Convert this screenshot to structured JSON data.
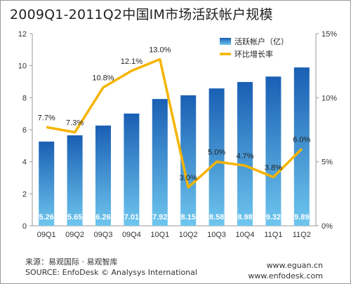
{
  "chart_data": {
    "type": "bar",
    "title": "2009Q1-2011Q2中国IM市场活跃帐户规模",
    "categories": [
      "09Q1",
      "09Q2",
      "09Q3",
      "09Q4",
      "10Q1",
      "10Q2",
      "10Q3",
      "10Q4",
      "11Q1",
      "11Q2"
    ],
    "series": [
      {
        "name": "活跃帐户（亿）",
        "type": "bar",
        "axis": "left",
        "values": [
          5.26,
          5.65,
          6.26,
          7.01,
          7.92,
          8.15,
          8.58,
          8.98,
          9.32,
          9.89
        ],
        "labels": [
          "5.26",
          "5.65",
          "6.26",
          "7.01",
          "7.92",
          "8.15",
          "8.58",
          "8.98",
          "9.32",
          "9.89"
        ]
      },
      {
        "name": "环比增长率",
        "type": "line",
        "axis": "right",
        "values": [
          7.7,
          7.3,
          10.8,
          12.1,
          13.0,
          3.0,
          5.0,
          4.7,
          3.8,
          6.0
        ],
        "labels": [
          "7.7%",
          "7.3%",
          "10.8%",
          "12.1%",
          "13.0%",
          "3.0%",
          "5.0%",
          "4.7%",
          "3.8%",
          "6.0%"
        ]
      }
    ],
    "ylim": [
      0,
      12
    ],
    "yticks": [
      "0",
      "2",
      "4",
      "6",
      "8",
      "10",
      "12"
    ],
    "y2lim": [
      0,
      15
    ],
    "y2ticks": [
      "0%",
      "5%",
      "10%",
      "15%"
    ],
    "legend_position": "top-right",
    "grid": false,
    "colors": {
      "bar_top": "#1a5fb4",
      "bar_bottom": "#6ec6ee",
      "line": "#f5b400"
    }
  },
  "footer": {
    "source_cn": "来源：易观国际 · 易观智库",
    "source_en": "SOURCE: EnfoDesk © Analysys International",
    "url1": "www.eguan.cn",
    "url2": "www.enfodesk.com"
  }
}
